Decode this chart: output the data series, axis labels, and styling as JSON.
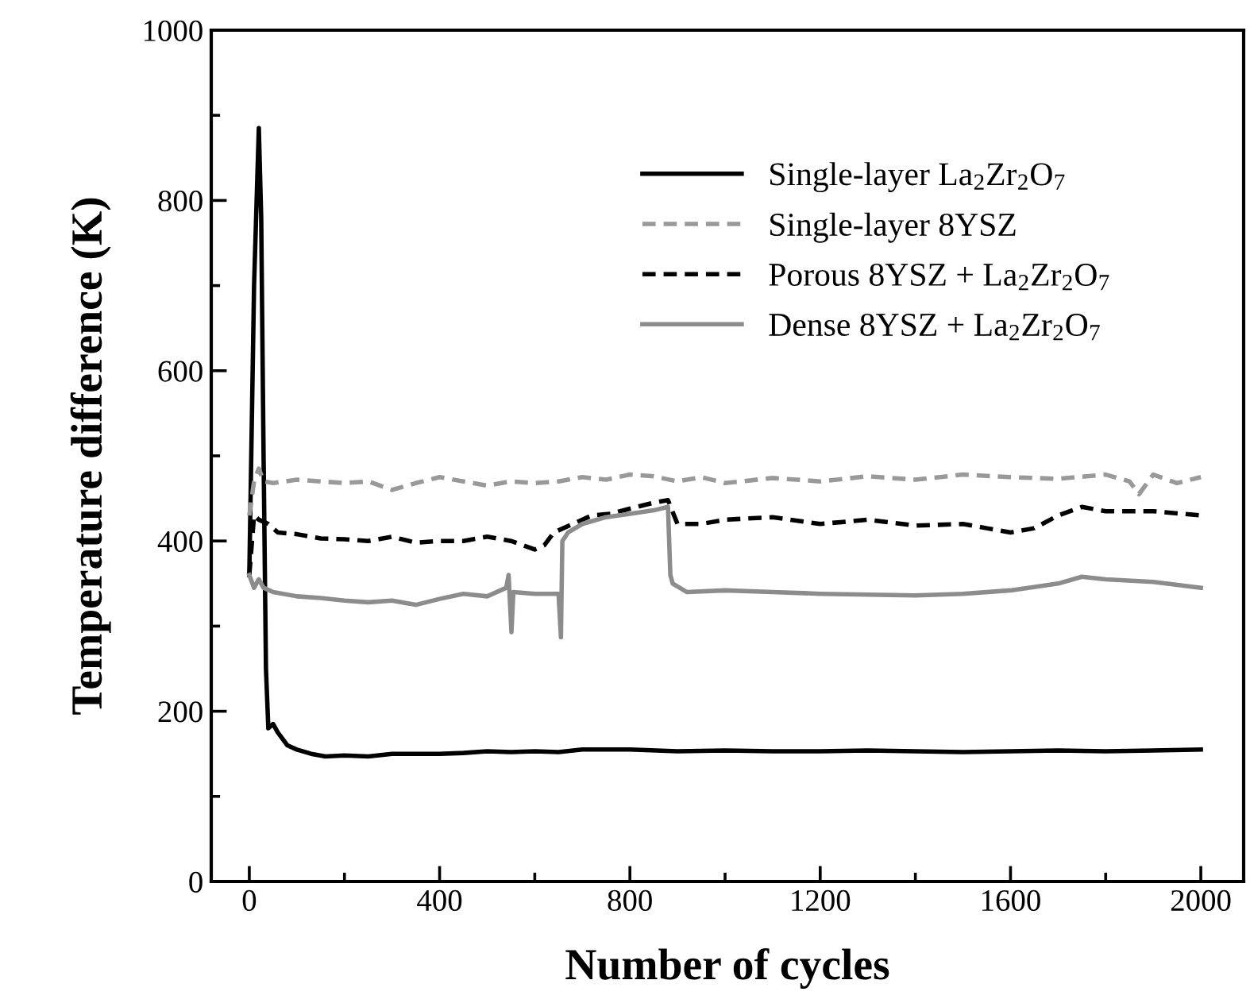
{
  "chart_data": {
    "type": "line",
    "xlabel": "Number of cycles",
    "ylabel": "Temperature difference (K)",
    "xlim": [
      -80,
      2090
    ],
    "ylim": [
      0,
      1000
    ],
    "xticks": [
      0,
      400,
      800,
      1200,
      1600,
      2000
    ],
    "yticks": [
      0,
      200,
      400,
      600,
      800,
      1000
    ],
    "grid": false,
    "legend": "top right",
    "marker": "none",
    "series": [
      {
        "name": "Single-layer La$_{2}$Zr$_{2}$O$_{7}$",
        "color": "#000000",
        "line_style": "solid",
        "x": [
          0,
          10,
          20,
          25,
          30,
          35,
          40,
          50,
          60,
          80,
          100,
          130,
          160,
          200,
          250,
          300,
          350,
          400,
          450,
          500,
          550,
          600,
          650,
          700,
          800,
          900,
          1000,
          1100,
          1200,
          1300,
          1400,
          1500,
          1600,
          1700,
          1800,
          1900,
          2000
        ],
        "values": [
          360,
          700,
          885,
          780,
          500,
          250,
          180,
          185,
          175,
          160,
          155,
          150,
          147,
          148,
          147,
          150,
          150,
          150,
          151,
          153,
          152,
          153,
          152,
          155,
          155,
          153,
          154,
          153,
          153,
          154,
          153,
          152,
          153,
          154,
          153,
          154,
          155
        ]
      },
      {
        "name": "Single-layer 8YSZ",
        "color": "#999999",
        "line_style": "dashed",
        "x": [
          0,
          10,
          20,
          30,
          50,
          100,
          150,
          200,
          250,
          300,
          350,
          400,
          450,
          500,
          550,
          600,
          650,
          700,
          750,
          800,
          850,
          900,
          950,
          1000,
          1100,
          1200,
          1300,
          1400,
          1500,
          1600,
          1700,
          1800,
          1850,
          1870,
          1900,
          1950,
          2000
        ],
        "values": [
          430,
          470,
          485,
          470,
          468,
          472,
          470,
          468,
          470,
          460,
          468,
          475,
          470,
          465,
          470,
          468,
          470,
          475,
          472,
          478,
          476,
          470,
          475,
          468,
          474,
          470,
          476,
          472,
          478,
          475,
          473,
          478,
          470,
          455,
          478,
          468,
          475
        ]
      },
      {
        "name": "Porous 8YSZ + La$_{2}$Zr$_{2}$O$_{7}$",
        "color": "#000000",
        "line_style": "dashed",
        "x": [
          0,
          10,
          20,
          40,
          60,
          100,
          150,
          200,
          250,
          300,
          350,
          400,
          450,
          500,
          550,
          600,
          620,
          640,
          680,
          720,
          760,
          800,
          850,
          880,
          900,
          950,
          1000,
          1100,
          1200,
          1300,
          1400,
          1500,
          1550,
          1600,
          1650,
          1700,
          1750,
          1800,
          1900,
          2000
        ],
        "values": [
          360,
          430,
          425,
          420,
          410,
          408,
          403,
          402,
          400,
          405,
          398,
          400,
          400,
          405,
          400,
          390,
          395,
          410,
          420,
          430,
          432,
          438,
          445,
          448,
          420,
          420,
          425,
          428,
          420,
          425,
          418,
          420,
          415,
          410,
          415,
          430,
          440,
          435,
          435,
          430
        ]
      },
      {
        "name": "Dense 8YSZ + La$_{2}$Zr$_{2}$O$_{7}$",
        "color": "#8c8c8c",
        "line_style": "solid",
        "x": [
          0,
          10,
          20,
          30,
          50,
          100,
          150,
          200,
          250,
          300,
          350,
          400,
          450,
          500,
          540,
          545,
          551,
          555,
          600,
          650,
          655,
          658,
          670,
          700,
          750,
          800,
          850,
          880,
          885,
          890,
          920,
          1000,
          1100,
          1200,
          1300,
          1400,
          1500,
          1600,
          1700,
          1750,
          1800,
          1900,
          2000
        ],
        "values": [
          360,
          345,
          355,
          345,
          340,
          335,
          333,
          330,
          328,
          330,
          325,
          332,
          338,
          335,
          345,
          360,
          293,
          340,
          338,
          338,
          287,
          400,
          410,
          420,
          428,
          432,
          436,
          440,
          360,
          350,
          340,
          342,
          340,
          338,
          337,
          336,
          338,
          342,
          350,
          358,
          355,
          352,
          345
        ]
      }
    ]
  }
}
